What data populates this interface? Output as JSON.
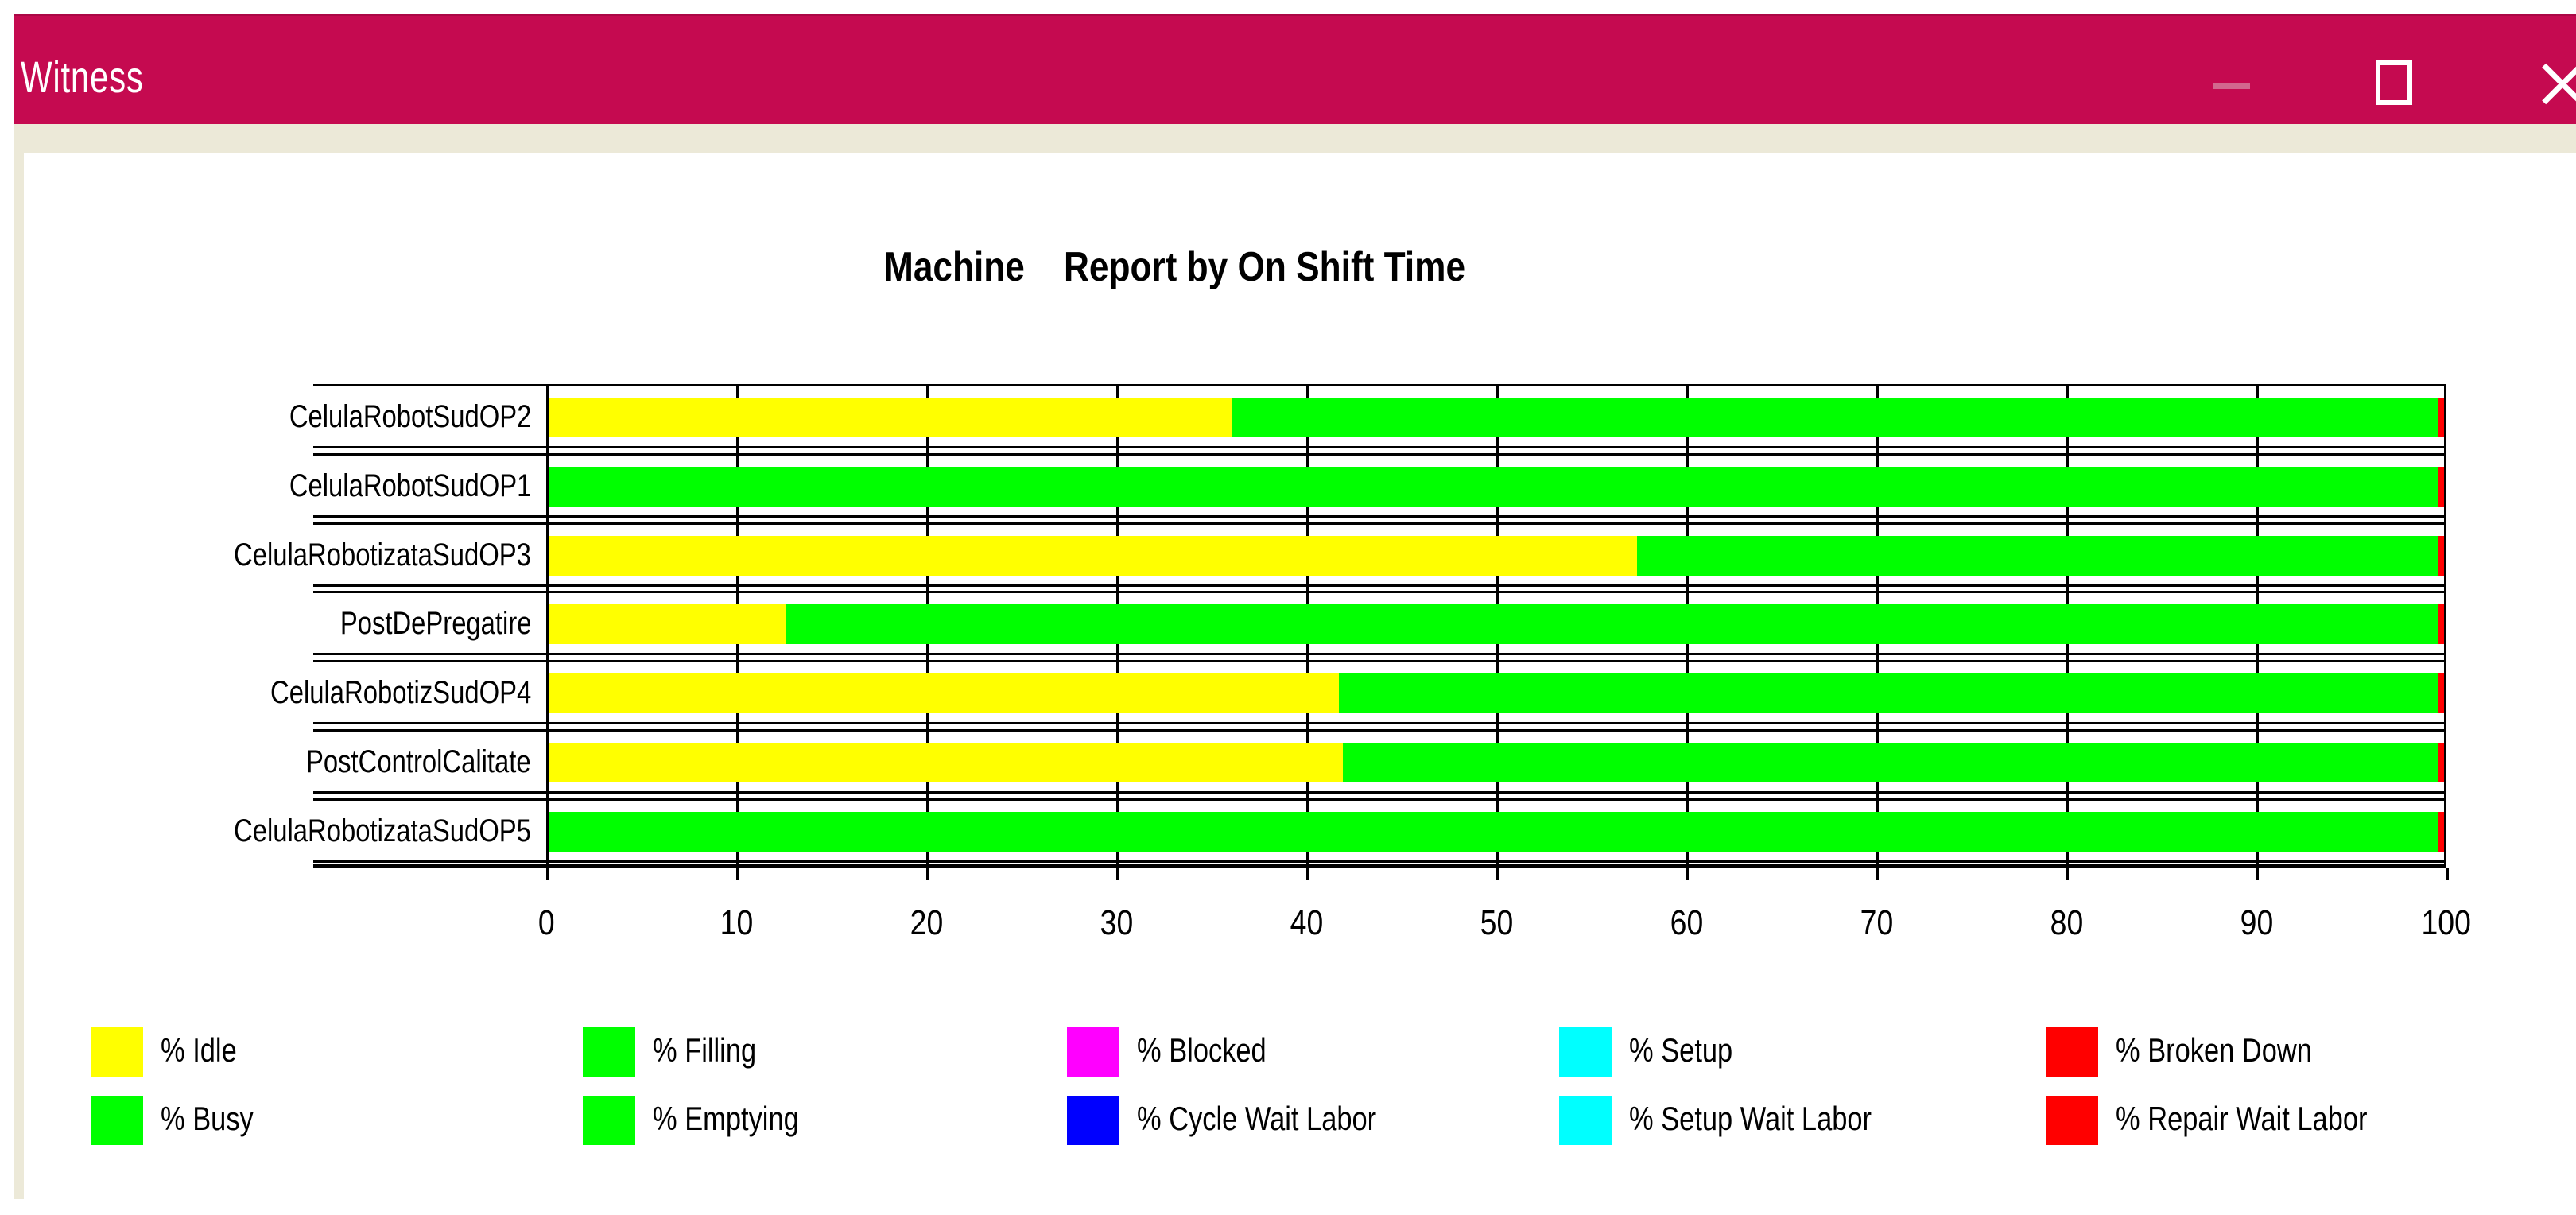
{
  "window": {
    "title": "Witness",
    "controls": [
      {
        "name": "minimize",
        "icon": "minimize-icon"
      },
      {
        "name": "maximize",
        "icon": "maximize-icon"
      },
      {
        "name": "close",
        "icon": "close-icon"
      }
    ]
  },
  "chart_data": {
    "type": "bar",
    "orientation": "horizontal_stacked",
    "title": "Machine    Report by On Shift Time",
    "xlabel": "",
    "ylabel": "",
    "xlim": [
      0,
      100
    ],
    "x_ticks": [
      0,
      10,
      20,
      30,
      40,
      50,
      60,
      70,
      80,
      90,
      100
    ],
    "grid": true,
    "categories": [
      "CelulaRobotSudOP2",
      "CelulaRobotSudOP1",
      "CelulaRobotizataSudOP3",
      "PostDePregatire",
      "CelulaRobotizSudOP4",
      "PostControlCalitate",
      "CelulaRobotizataSudOP5"
    ],
    "series": [
      {
        "name": "% Idle",
        "color": "#ffff00",
        "values": [
          36.0,
          0,
          57.3,
          12.5,
          41.6,
          41.8,
          0
        ]
      },
      {
        "name": "% Busy",
        "color": "#00ff00",
        "values": [
          63.7,
          99.7,
          42.4,
          87.2,
          58.1,
          57.9,
          99.7
        ]
      },
      {
        "name": "% Broken Down",
        "color": "#ff0000",
        "values": [
          0.3,
          0.3,
          0.3,
          0.3,
          0.3,
          0.3,
          0.3
        ]
      }
    ]
  },
  "legend": {
    "position": "bottom",
    "items": [
      {
        "label": "% Idle",
        "color": "#ffff00",
        "pattern": "none",
        "row": 0,
        "col": 0
      },
      {
        "label": "% Busy",
        "color": "#00ff00",
        "pattern": "none",
        "row": 1,
        "col": 0
      },
      {
        "label": "% Filling",
        "color": "#00ff00",
        "pattern": "cross",
        "row": 0,
        "col": 1
      },
      {
        "label": "% Emptying",
        "color": "#00ff00",
        "pattern": "grid",
        "row": 1,
        "col": 1
      },
      {
        "label": "% Blocked",
        "color": "#ff00ff",
        "pattern": "none",
        "row": 0,
        "col": 2
      },
      {
        "label": "% Cycle Wait Labor",
        "color": "#0000ff",
        "pattern": "none",
        "row": 1,
        "col": 2
      },
      {
        "label": "% Setup",
        "color": "#00ffff",
        "pattern": "none",
        "row": 0,
        "col": 3
      },
      {
        "label": "% Setup Wait Labor",
        "color": "#00ffff",
        "pattern": "cross",
        "row": 1,
        "col": 3
      },
      {
        "label": "% Broken Down",
        "color": "#ff0000",
        "pattern": "none",
        "row": 0,
        "col": 4
      },
      {
        "label": "% Repair Wait Labor",
        "color": "#ff0000",
        "pattern": "cross",
        "row": 1,
        "col": 4
      }
    ]
  },
  "colors": {
    "titlebar": "#c50a50",
    "titlebar_edge": "#ab0745",
    "titlebar_text": "#ffffff",
    "frame": "#ece9d8",
    "plot_line": "#000000",
    "background": "#ffffff"
  }
}
